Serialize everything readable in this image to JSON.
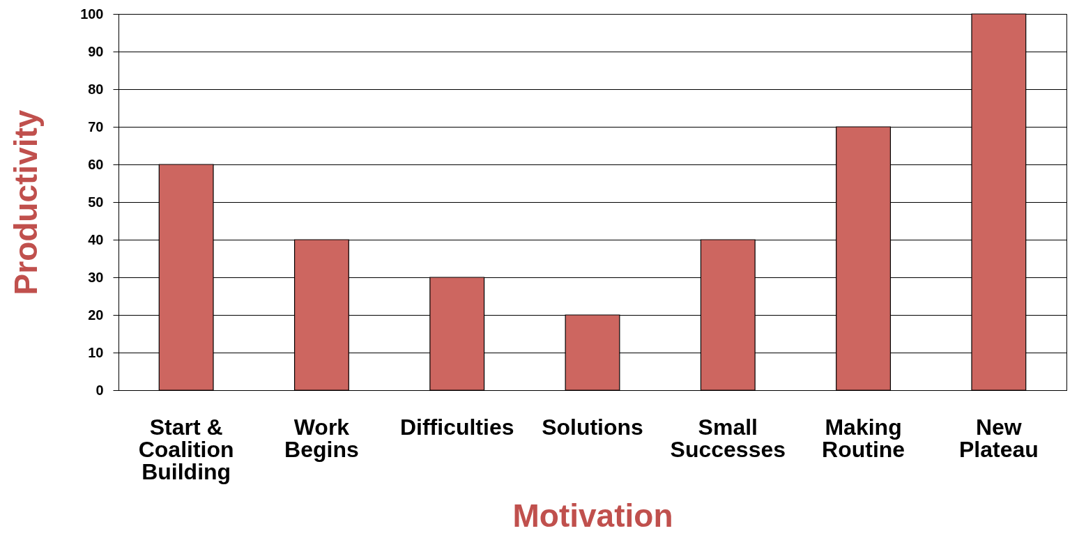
{
  "chart_data": {
    "type": "bar",
    "categories": [
      "Start &\nCoalition\nBuilding",
      "Work\nBegins",
      "Difficulties",
      "Solutions",
      "Small\nSuccesses",
      "Making\nRoutine",
      "New\nPlateau"
    ],
    "values": [
      60,
      40,
      30,
      20,
      40,
      70,
      100
    ],
    "color": "#cd6660",
    "xlabel": "Motivation",
    "ylabel": "Productivity",
    "ylim": [
      0,
      100
    ],
    "yticks": [
      0,
      10,
      20,
      30,
      40,
      50,
      60,
      70,
      80,
      90,
      100
    ],
    "grid": "y"
  }
}
